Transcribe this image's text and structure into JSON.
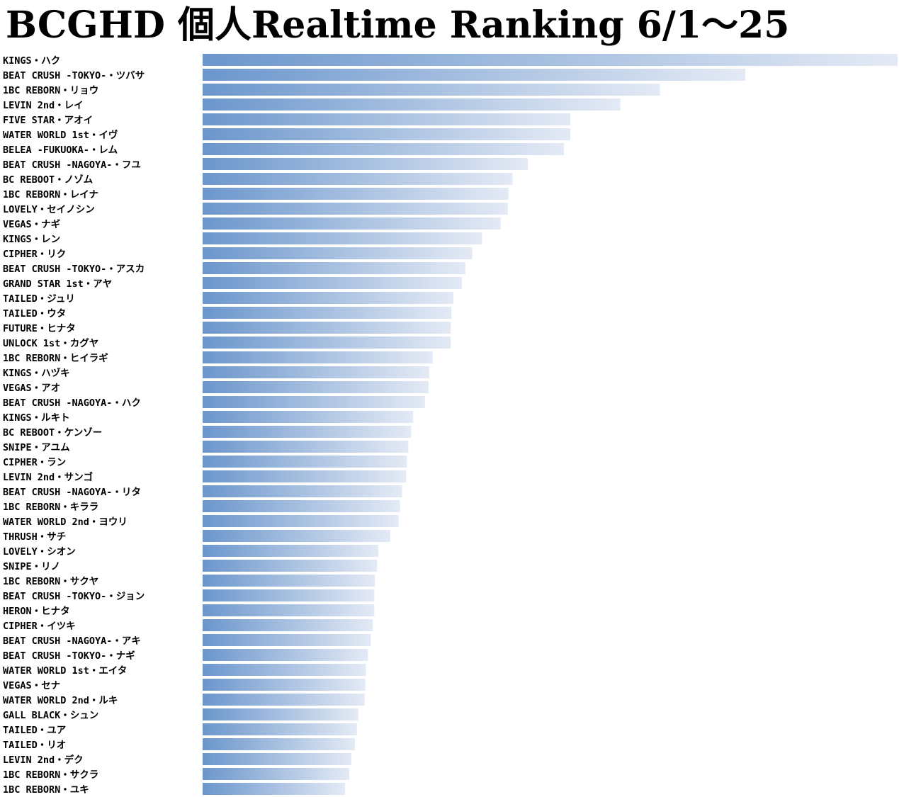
{
  "chart_data": {
    "type": "bar",
    "orientation": "horizontal",
    "title": "BCGHD 個人Realtime Ranking  6/1～25",
    "xlabel": "",
    "ylabel": "",
    "grid": false,
    "legend": "none",
    "gradient": {
      "start": "#6b96cc",
      "end": "#e4eaf5"
    },
    "xlim": [
      0,
      100
    ],
    "categories": [
      "KINGS・ハク",
      "BEAT CRUSH -TOKYO-・ツバサ",
      "1BC REBORN・リョウ",
      "LEVIN 2nd・レイ",
      "FIVE STAR・アオイ",
      "WATER WORLD 1st・イヴ",
      "BELEA -FUKUOKA-・レム",
      "BEAT CRUSH -NAGOYA-・フユ",
      "BC REBOOT・ノゾム",
      "1BC REBORN・レイナ",
      "LOVELY・セイノシン",
      "VEGAS・ナギ",
      "KINGS・レン",
      "CIPHER・リク",
      "BEAT CRUSH -TOKYO-・アスカ",
      "GRAND STAR 1st・アヤ",
      "TAILED・ジュリ",
      "TAILED・ウタ",
      "FUTURE・ヒナタ",
      "UNLOCK 1st・カグヤ",
      "1BC REBORN・ヒイラギ",
      "KINGS・ハヅキ",
      "VEGAS・アオ",
      "BEAT CRUSH -NAGOYA-・ハク",
      "KINGS・ルキト",
      "BC REBOOT・ケンゾー",
      "SNIPE・アユム",
      "CIPHER・ラン",
      "LEVIN 2nd・サンゴ",
      "BEAT CRUSH -NAGOYA-・リタ",
      "1BC REBORN・キララ",
      "WATER WORLD 2nd・ヨウリ",
      "THRUSH・サチ",
      "LOVELY・シオン",
      "SNIPE・リノ",
      "1BC REBORN・サクヤ",
      "BEAT CRUSH -TOKYO-・ジョン",
      "HERON・ヒナタ",
      "CIPHER・イツキ",
      "BEAT CRUSH -NAGOYA-・アキ",
      "BEAT CRUSH -TOKYO-・ナギ",
      "WATER WORLD 1st・エイタ",
      "VEGAS・セナ",
      "WATER WORLD 2nd・ルキ",
      "GALL BLACK・シュン",
      "TAILED・ユア",
      "TAILED・リオ",
      "LEVIN 2nd・デク",
      "1BC REBORN・サクラ",
      "1BC REBORN・ユキ"
    ],
    "values": [
      100,
      78.1,
      65.8,
      60.1,
      52.9,
      52.9,
      52.0,
      46.8,
      44.6,
      44.0,
      43.9,
      42.9,
      40.2,
      38.8,
      37.8,
      37.3,
      36.1,
      35.8,
      35.7,
      35.7,
      33.1,
      32.6,
      32.5,
      32.0,
      30.3,
      30.0,
      29.6,
      29.4,
      29.3,
      28.7,
      28.4,
      28.2,
      27.0,
      25.3,
      25.1,
      24.8,
      24.7,
      24.7,
      24.5,
      24.2,
      23.8,
      23.5,
      23.4,
      23.3,
      22.4,
      22.2,
      21.9,
      21.4,
      21.1,
      20.5
    ]
  }
}
